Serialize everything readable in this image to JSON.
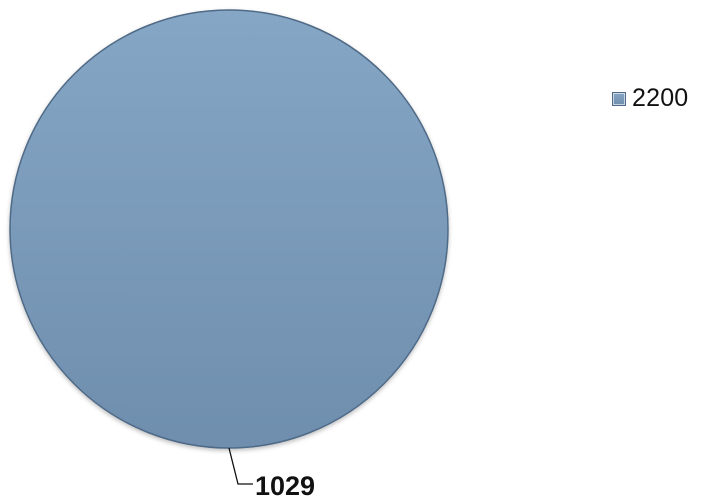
{
  "chart_data": {
    "type": "pie",
    "categories": [
      "2200"
    ],
    "values": [
      1029
    ],
    "title": "",
    "legend": {
      "position": "right",
      "entries": [
        "2200"
      ]
    },
    "data_labels": [
      "1029"
    ],
    "colors": {
      "slice_top": "#86a6c6",
      "slice_bottom": "#6f8eae",
      "slice_edge": "#4f6a86",
      "leader_line": "#111111"
    }
  }
}
